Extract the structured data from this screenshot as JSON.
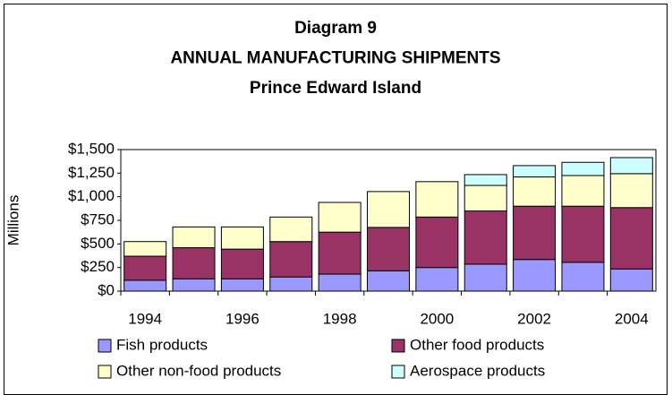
{
  "chart_data": {
    "type": "stacked_bar",
    "title": [
      "Diagram 9",
      "ANNUAL MANUFACTURING SHIPMENTS",
      "Prince Edward Island"
    ],
    "y_label": "Millions",
    "categories": [
      "1994",
      null,
      "1996",
      null,
      "1998",
      null,
      "2000",
      null,
      "2002",
      null,
      "2004"
    ],
    "series": [
      {
        "name": "Fish products",
        "color": "#9999ff",
        "values": [
          115,
          130,
          130,
          150,
          180,
          215,
          250,
          285,
          335,
          305,
          235
        ]
      },
      {
        "name": "Other food products",
        "color": "#993366",
        "values": [
          255,
          330,
          315,
          375,
          445,
          460,
          535,
          565,
          565,
          595,
          650
        ]
      },
      {
        "name": "Other non-food products",
        "color": "#ffffcc",
        "values": [
          155,
          220,
          235,
          260,
          315,
          380,
          375,
          270,
          310,
          325,
          360
        ]
      },
      {
        "name": "Aerospace products",
        "color": "#ccffff",
        "values": [
          null,
          null,
          null,
          null,
          null,
          null,
          null,
          115,
          120,
          140,
          170
        ]
      }
    ],
    "ylim": [
      0,
      1500
    ],
    "yticks": [
      {
        "value": 0,
        "label": "$0"
      },
      {
        "value": 250,
        "label": "$250"
      },
      {
        "value": 500,
        "label": "$500"
      },
      {
        "value": 750,
        "label": "$750"
      },
      {
        "value": 1000,
        "label": "$1,000"
      },
      {
        "value": 1250,
        "label": "$1,250"
      },
      {
        "value": 1500,
        "label": "$1,500"
      }
    ],
    "legend": "bottom"
  }
}
